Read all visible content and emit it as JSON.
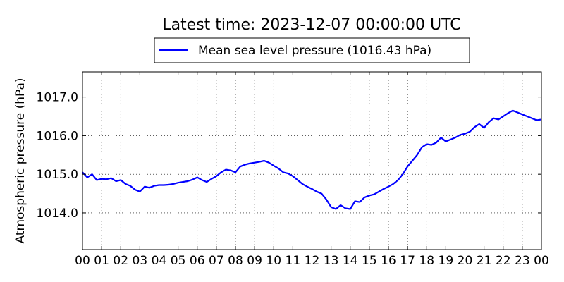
{
  "chart_data": {
    "type": "line",
    "title": "Latest time: 2023-12-07 00:00:00 UTC",
    "xlabel": "",
    "ylabel": "Atmospheric pressure (hPa)",
    "xlim": [
      0,
      24
    ],
    "ylim": [
      1013.05,
      1017.65
    ],
    "x_ticks": [
      "00",
      "01",
      "02",
      "03",
      "04",
      "05",
      "06",
      "07",
      "08",
      "09",
      "10",
      "11",
      "12",
      "13",
      "14",
      "15",
      "16",
      "17",
      "18",
      "19",
      "20",
      "21",
      "22",
      "23",
      "00"
    ],
    "y_ticks": [
      "1014.0",
      "1015.0",
      "1016.0",
      "1017.0"
    ],
    "grid": true,
    "legend_position": "top-center",
    "series": [
      {
        "name": "Mean sea level pressure (1016.43 hPa)",
        "color": "#0000ff",
        "x": [
          0,
          0.25,
          0.5,
          0.75,
          1,
          1.25,
          1.5,
          1.75,
          2,
          2.25,
          2.5,
          2.75,
          3,
          3.25,
          3.5,
          3.75,
          4,
          4.25,
          4.5,
          4.75,
          5,
          5.25,
          5.5,
          5.75,
          6,
          6.25,
          6.5,
          6.75,
          7,
          7.25,
          7.5,
          7.75,
          8,
          8.25,
          8.5,
          8.75,
          9,
          9.25,
          9.5,
          9.75,
          10,
          10.25,
          10.5,
          10.75,
          11,
          11.25,
          11.5,
          11.75,
          12,
          12.25,
          12.5,
          12.75,
          13,
          13.25,
          13.5,
          13.75,
          14,
          14.25,
          14.5,
          14.75,
          15,
          15.25,
          15.5,
          15.75,
          16,
          16.25,
          16.5,
          16.75,
          17,
          17.25,
          17.5,
          17.75,
          18,
          18.25,
          18.5,
          18.75,
          19,
          19.25,
          19.5,
          19.75,
          20,
          20.25,
          20.5,
          20.75,
          21,
          21.25,
          21.5,
          21.75,
          22,
          22.25,
          22.5,
          22.75,
          23,
          23.25,
          23.5,
          23.75,
          24
        ],
        "y": [
          1015.05,
          1014.92,
          1015.0,
          1014.85,
          1014.88,
          1014.87,
          1014.9,
          1014.82,
          1014.85,
          1014.75,
          1014.7,
          1014.6,
          1014.55,
          1014.68,
          1014.65,
          1014.7,
          1014.72,
          1014.72,
          1014.73,
          1014.75,
          1014.78,
          1014.8,
          1014.82,
          1014.86,
          1014.92,
          1014.85,
          1014.8,
          1014.88,
          1014.95,
          1015.05,
          1015.12,
          1015.1,
          1015.05,
          1015.2,
          1015.25,
          1015.28,
          1015.3,
          1015.32,
          1015.35,
          1015.3,
          1015.22,
          1015.15,
          1015.05,
          1015.02,
          1014.95,
          1014.85,
          1014.75,
          1014.68,
          1014.62,
          1014.55,
          1014.5,
          1014.35,
          1014.15,
          1014.1,
          1014.2,
          1014.12,
          1014.1,
          1014.3,
          1014.28,
          1014.4,
          1014.45,
          1014.48,
          1014.55,
          1014.62,
          1014.68,
          1014.75,
          1014.85,
          1015.0,
          1015.2,
          1015.35,
          1015.5,
          1015.7,
          1015.78,
          1015.76,
          1015.82,
          1015.95,
          1015.85,
          1015.9,
          1015.95,
          1016.02,
          1016.05,
          1016.1,
          1016.22,
          1016.3,
          1016.2,
          1016.35,
          1016.45,
          1016.42,
          1016.5,
          1016.58,
          1016.65,
          1016.6,
          1016.55,
          1016.5,
          1016.45,
          1016.4,
          1016.42
        ]
      }
    ]
  }
}
